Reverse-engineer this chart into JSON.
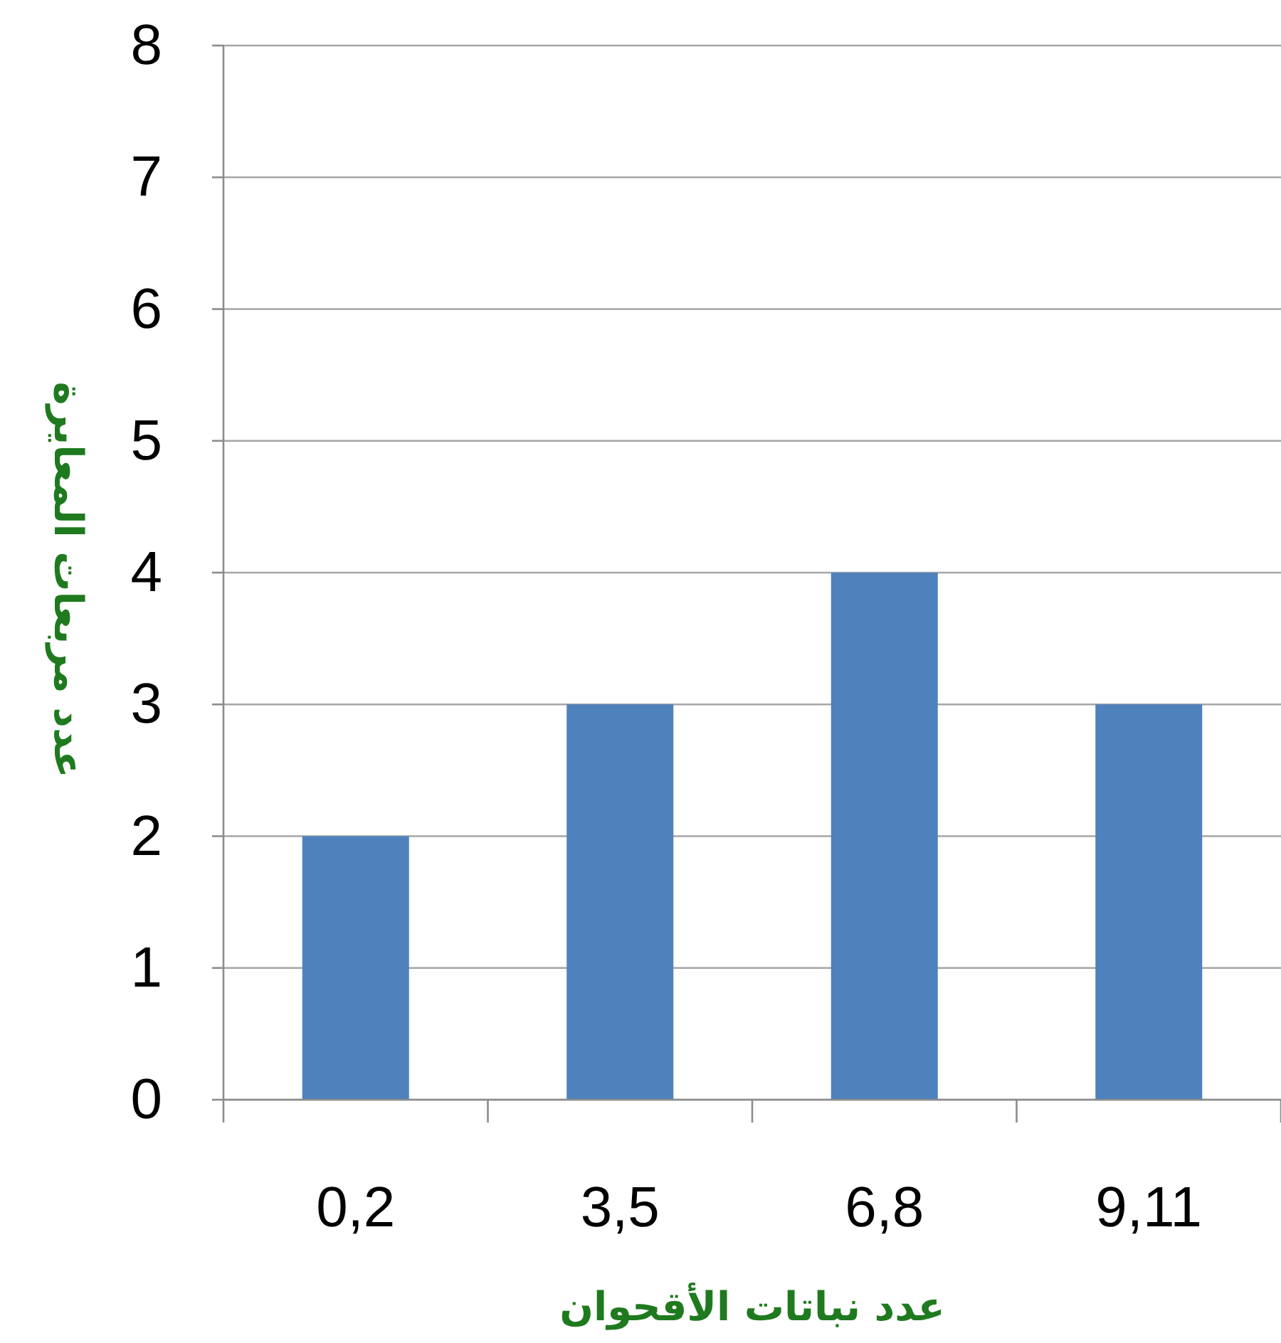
{
  "chart_data": {
    "type": "bar",
    "xlabel": "عدد نباتات الأقحوان",
    "ylabel": "عدد مربعات المعايرة",
    "categories": [
      "0,2",
      "3,5",
      "6,8",
      "9,11"
    ],
    "values": [
      2,
      3,
      4,
      3
    ],
    "color": "#4f81bd",
    "ylim": [
      0,
      8
    ],
    "yticks": [
      0,
      1,
      2,
      3,
      4,
      5,
      6,
      7,
      8
    ],
    "grid": "y"
  }
}
